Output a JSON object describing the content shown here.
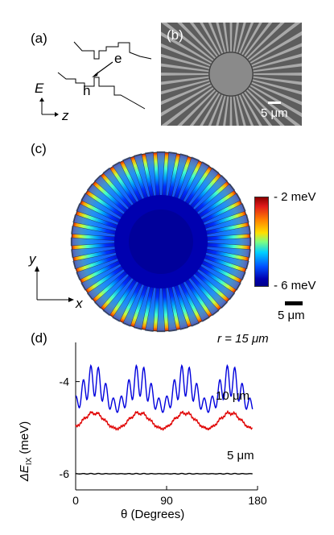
{
  "panel_a": {
    "label": "(a)",
    "electron": "e",
    "hole": "h",
    "axis_energy": "E",
    "axis_z": "z"
  },
  "panel_b": {
    "label": "(b)",
    "scalebar": "5 μm"
  },
  "panel_c": {
    "label": "(c)",
    "colorbar_top": "- 2 meV",
    "colorbar_bottom": "- 6 meV",
    "axis_y": "y",
    "axis_x": "x",
    "scalebar": "5 μm"
  },
  "panel_d": {
    "label": "(d)",
    "ylabel": "ΔE",
    "ylabel_sub": "IX",
    "ylabel_unit": " (meV)",
    "xlabel": "θ (Degrees)",
    "curve_labels": [
      "r = 15 μm",
      "10 μm",
      "5 μm"
    ]
  },
  "chart_data": {
    "type": "line",
    "title": "",
    "xlabel": "θ (Degrees)",
    "ylabel": "ΔE_IX (meV)",
    "xlim": [
      0,
      180
    ],
    "ylim": [
      -6.35,
      -3.15
    ],
    "x_ticks": [
      0,
      90,
      180
    ],
    "y_ticks": [
      -4,
      -6
    ],
    "series": [
      {
        "name": "r = 15 μm",
        "color": "#0000dd",
        "mean": -4.25,
        "amplitude_slow": 0.28,
        "period_slow_deg": 45,
        "amplitude_fast": 0.35,
        "period_fast_deg": 7.5
      },
      {
        "name": "10 μm",
        "color": "#e00000",
        "mean": -4.85,
        "amplitude_slow": 0.17,
        "period_slow_deg": 45,
        "amplitude_fast": 0.03,
        "period_fast_deg": 7.5
      },
      {
        "name": "5 μm",
        "color": "#000000",
        "mean": -6.0,
        "amplitude_slow": 0.0,
        "period_slow_deg": 45,
        "amplitude_fast": 0.008,
        "period_fast_deg": 7.5
      }
    ]
  }
}
